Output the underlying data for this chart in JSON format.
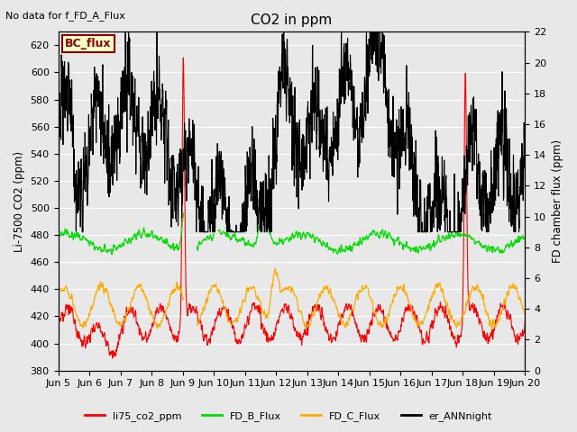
{
  "title": "CO2 in ppm",
  "top_left_text": "No data for f_FD_A_Flux",
  "bc_flux_label": "BC_flux",
  "ylabel_left": "Li-7500 CO2 (ppm)",
  "ylabel_right": "FD chamber flux (ppm)",
  "ylim_left": [
    380,
    630
  ],
  "ylim_right": [
    0,
    22
  ],
  "yticks_left": [
    380,
    400,
    420,
    440,
    460,
    480,
    500,
    520,
    540,
    560,
    580,
    600,
    620
  ],
  "yticks_right": [
    0,
    2,
    4,
    6,
    8,
    10,
    12,
    14,
    16,
    18,
    20,
    22
  ],
  "xlim": [
    5,
    20
  ],
  "xtick_positions": [
    5,
    6,
    7,
    8,
    9,
    10,
    11,
    12,
    13,
    14,
    15,
    16,
    17,
    18,
    19,
    20
  ],
  "xtick_labels": [
    "Jun 5",
    "Jun 6",
    "Jun 7",
    "Jun 8",
    "Jun 9",
    "Jun 10",
    "Jun 11",
    "Jun 12",
    "Jun 13",
    "Jun 14",
    "Jun 15",
    "Jun 16",
    "Jun 17",
    "Jun 18",
    "Jun 19",
    "Jun 20"
  ],
  "background_color": "#e8e8e8",
  "grid_color": "#ffffff",
  "line_colors": {
    "li75": "#ff0000",
    "FD_B": "#00dd00",
    "FD_C": "#ffaa00",
    "er_ANN": "#000000"
  },
  "legend_labels": [
    "li75_co2_ppm",
    "FD_B_Flux",
    "FD_C_Flux",
    "er_ANNnight"
  ],
  "legend_colors": [
    "#ff0000",
    "#00dd00",
    "#ffaa00",
    "#000000"
  ],
  "bc_flux_facecolor": "#ffffcc",
  "bc_flux_edgecolor": "#8B0000",
  "bc_flux_textcolor": "#8B0000"
}
